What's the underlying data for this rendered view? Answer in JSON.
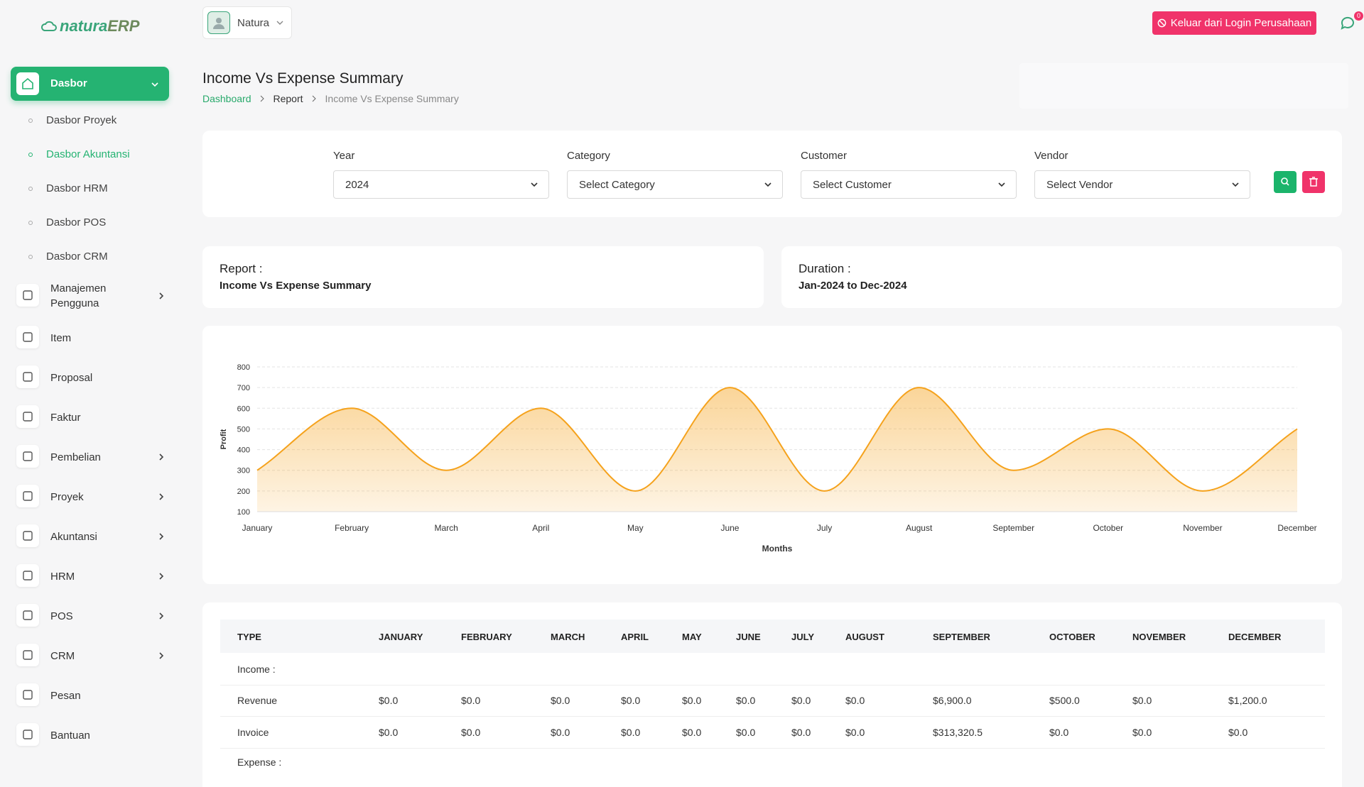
{
  "brand": {
    "name": "natura",
    "suffix": "ERP"
  },
  "header": {
    "user": "Natura",
    "logout": "Keluar dari Login Perusahaan",
    "notifications": 0
  },
  "sidebar": {
    "items": [
      {
        "label": "Dasbor",
        "active": true,
        "children": [
          {
            "label": "Dasbor Proyek"
          },
          {
            "label": "Dasbor Akuntansi",
            "active": true
          },
          {
            "label": "Dasbor HRM"
          },
          {
            "label": "Dasbor POS"
          },
          {
            "label": "Dasbor CRM"
          }
        ]
      },
      {
        "label": "Manajemen Pengguna",
        "submenu": true
      },
      {
        "label": "Item"
      },
      {
        "label": "Proposal"
      },
      {
        "label": "Faktur"
      },
      {
        "label": "Pembelian",
        "submenu": true
      },
      {
        "label": "Proyek",
        "submenu": true
      },
      {
        "label": "Akuntansi",
        "submenu": true
      },
      {
        "label": "HRM",
        "submenu": true
      },
      {
        "label": "POS",
        "submenu": true
      },
      {
        "label": "CRM",
        "submenu": true
      },
      {
        "label": "Pesan"
      },
      {
        "label": "Bantuan"
      }
    ]
  },
  "page": {
    "title": "Income Vs Expense Summary",
    "breadcrumb": [
      "Dashboard",
      "Report",
      "Income Vs Expense Summary"
    ]
  },
  "filters": [
    {
      "label": "Year",
      "value": "2024"
    },
    {
      "label": "Category",
      "value": "Select Category"
    },
    {
      "label": "Customer",
      "value": "Select Customer"
    },
    {
      "label": "Vendor",
      "value": "Select Vendor"
    }
  ],
  "summary": [
    {
      "label": "Report :",
      "value": "Income Vs Expense Summary"
    },
    {
      "label": "Duration :",
      "value": "Jan-2024 to Dec-2024"
    }
  ],
  "chart_data": {
    "type": "area",
    "x_label": "Months",
    "y_label": "Profit",
    "categories": [
      "January",
      "February",
      "March",
      "April",
      "May",
      "June",
      "July",
      "August",
      "September",
      "October",
      "November",
      "December"
    ],
    "values": [
      300,
      600,
      300,
      600,
      200,
      700,
      200,
      700,
      300,
      500,
      200,
      500
    ],
    "color": "#f5a21c",
    "ylim": [
      100,
      800
    ],
    "yticks": [
      100,
      200,
      300,
      400,
      500,
      600,
      700,
      800
    ],
    "grid": true
  },
  "table": {
    "columns": [
      "TYPE",
      "JANUARY",
      "FEBRUARY",
      "MARCH",
      "APRIL",
      "MAY",
      "JUNE",
      "JULY",
      "AUGUST",
      "SEPTEMBER",
      "OCTOBER",
      "NOVEMBER",
      "DECEMBER"
    ],
    "rows": [
      [
        "Income :"
      ],
      [
        "Revenue",
        "$0.0",
        "$0.0",
        "$0.0",
        "$0.0",
        "$0.0",
        "$0.0",
        "$0.0",
        "$0.0",
        "$6,900.0",
        "$500.0",
        "$0.0",
        "$1,200.0"
      ],
      [
        "Invoice",
        "$0.0",
        "$0.0",
        "$0.0",
        "$0.0",
        "$0.0",
        "$0.0",
        "$0.0",
        "$0.0",
        "$313,320.5",
        "$0.0",
        "$0.0",
        "$0.0"
      ],
      [
        "Expense :"
      ]
    ]
  }
}
